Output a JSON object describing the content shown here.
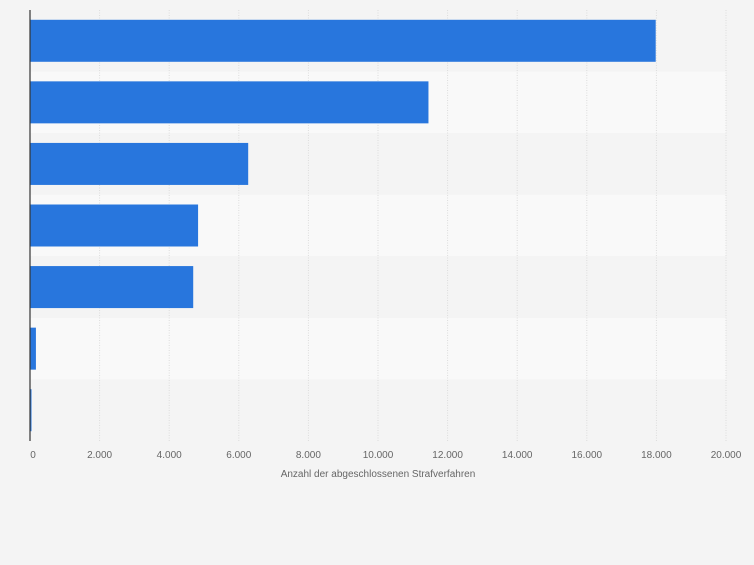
{
  "chart_data": {
    "type": "bar",
    "orientation": "horizontal",
    "categories": [
      "",
      "",
      "",
      "",
      "",
      "",
      ""
    ],
    "values": [
      17980,
      11450,
      6270,
      4830,
      4690,
      170,
      30
    ],
    "title": "",
    "xlabel": "Anzahl der abgeschlossenen Strafverfahren",
    "ylabel": "",
    "xlim": [
      0,
      20000
    ],
    "ticks": [
      0,
      2000,
      4000,
      6000,
      8000,
      10000,
      12000,
      14000,
      16000,
      18000,
      20000
    ],
    "tick_labels": [
      "0",
      "2.000",
      "4.000",
      "6.000",
      "8.000",
      "10.000",
      "12.000",
      "14.000",
      "16.000",
      "18.000",
      "20.000"
    ],
    "grid": true,
    "legend": "none",
    "colors": {
      "bar": "#2876dd",
      "band_light": "#f9f9f9",
      "band_dark": "#f4f4f4",
      "grid": "#dcdcdc",
      "axis": "#333333",
      "text": "#666666"
    }
  }
}
